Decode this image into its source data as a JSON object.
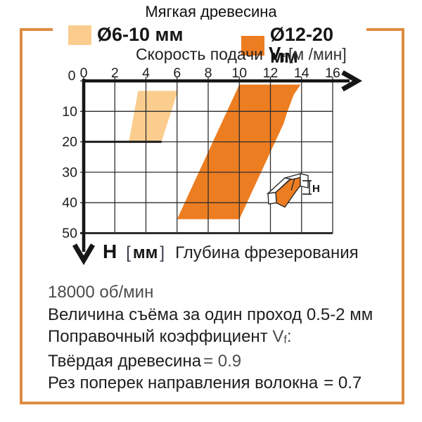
{
  "title": "Мягкая древесина",
  "legend": [
    {
      "label": "Ø6-10 мм",
      "color": "#FACD8E"
    },
    {
      "label": "Ø12-20 мм",
      "color": "#ED7D21"
    }
  ],
  "feed_axis": {
    "prefix": "Скорость подачи",
    "symbol": "V",
    "sub": "f",
    "unit": "[м /мин]"
  },
  "depth_axis": {
    "symbol": "H",
    "bracket_open": "[",
    "unit": "мм",
    "bracket_close": "]",
    "label": "Глубина фрезерования"
  },
  "icon": {
    "h_label": "H"
  },
  "chart_data": {
    "type": "area",
    "title": "Мягкая древесина",
    "x_axis_label": "Скорость подачи Vf [м/мин]",
    "y_axis_label": "H [мм] Глубина фрезерования",
    "xlim": [
      0,
      16
    ],
    "ylim": [
      0,
      50
    ],
    "x_ticks": [
      0,
      2,
      4,
      6,
      8,
      10,
      12,
      14,
      16
    ],
    "y_ticks": [
      0,
      10,
      20,
      30,
      40,
      50
    ],
    "y_origin_label": "0",
    "grid": true,
    "legend_position": "top",
    "series": [
      {
        "name": "Ø6-10 мм",
        "color": "#FACD8E",
        "polygon": [
          [
            3.5,
            3.3
          ],
          [
            6.05,
            3.3
          ],
          [
            5.0,
            20
          ],
          [
            2.9,
            20
          ]
        ]
      },
      {
        "name": "Ø12-20 мм",
        "color": "#ED7D21",
        "polygon": [
          [
            10,
            1.2
          ],
          [
            13.95,
            1.2
          ],
          [
            13.5,
            4.5
          ],
          [
            13.1,
            10
          ],
          [
            12.85,
            14
          ],
          [
            10,
            45.4
          ],
          [
            6,
            45.4
          ]
        ]
      }
    ],
    "depth_limit_line": {
      "y": 20,
      "x_from": 0,
      "x_to": 5.0
    }
  },
  "notes": {
    "line1": "18000 об/мин",
    "line2": "Величина съёма за один проход 0.5-2 мм",
    "line3_prefix": "Поправочный коэффициент ",
    "line3_symbol": "V",
    "line3_sub": "f",
    "line3_suffix": ":",
    "line4_label": "Твёрдая древесина",
    "line4_value": "= 0.9",
    "line5_label": "Рез поперек направления волокна",
    "line5_value": "= 0.7"
  },
  "colors": {
    "frame": "#DD8C42",
    "band_light": "#FACD8E",
    "band_dark": "#ED7D21",
    "grid": "#2e2e2e",
    "axis": "#161616"
  }
}
